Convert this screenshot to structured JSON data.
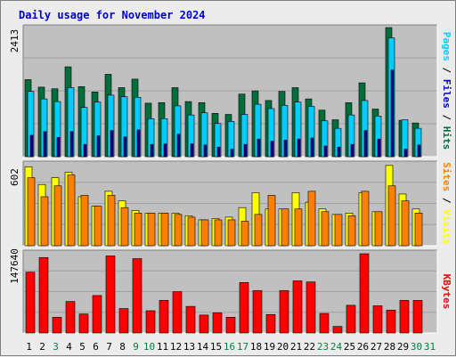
{
  "chart_data": {
    "type": "bar",
    "title": "Daily usage for November 2024",
    "days": [
      "1",
      "2",
      "3",
      "4",
      "5",
      "6",
      "7",
      "8",
      "9",
      "10",
      "11",
      "12",
      "13",
      "14",
      "15",
      "16",
      "17",
      "18",
      "19",
      "20",
      "21",
      "22",
      "23",
      "24",
      "25",
      "26",
      "27",
      "28",
      "29",
      "30",
      "31"
    ],
    "weekend_days": [
      "3",
      "9",
      "10",
      "16",
      "17",
      "23",
      "24",
      "30",
      "31"
    ],
    "colors": {
      "hits": "#006e3a",
      "files": "#00ccff",
      "pages": "#000099",
      "visits": "#ffff00",
      "sites": "#ff8000",
      "kbytes": "#ff0000",
      "weekday_label": "#000000",
      "weekend_label": "#008040",
      "panel": "#c0c0c0",
      "title": "#0000cc"
    },
    "panels": [
      {
        "ymax_label": "2413",
        "ymax": 2413,
        "right_labels": [
          {
            "text": "Pages",
            "color": "#00ccff"
          },
          {
            "text": " / ",
            "color": "#000000"
          },
          {
            "text": "Files",
            "color": "#0000cc"
          },
          {
            "text": " / ",
            "color": "#000000"
          },
          {
            "text": "Hits",
            "color": "#006e3a"
          }
        ],
        "series": [
          {
            "name": "Hits",
            "color": "#006e3a",
            "values": [
              1440,
              1300,
              1270,
              1680,
              1310,
              1210,
              1540,
              1290,
              1450,
              1000,
              1010,
              1290,
              1030,
              1010,
              810,
              790,
              1170,
              1230,
              1050,
              1220,
              1290,
              1080,
              870,
              690,
              1010,
              1380,
              890,
              2413,
              680,
              630,
              null
            ]
          },
          {
            "name": "Files",
            "color": "#00ccff",
            "values": [
              1220,
              1080,
              1030,
              1290,
              920,
              1020,
              1150,
              1120,
              1110,
              710,
              710,
              950,
              780,
              820,
              620,
              660,
              790,
              980,
              900,
              960,
              1020,
              940,
              670,
              530,
              780,
              1050,
              760,
              2220,
              690,
              530,
              null
            ]
          },
          {
            "name": "Pages",
            "color": "#000099",
            "values": [
              400,
              470,
              360,
              470,
              230,
              390,
              490,
              370,
              500,
              230,
              240,
              420,
              240,
              220,
              180,
              140,
              230,
              330,
              290,
              310,
              330,
              350,
              200,
              180,
              230,
              490,
              330,
              1620,
              140,
              220,
              null
            ]
          }
        ]
      },
      {
        "ymax_label": "602",
        "ymax": 602,
        "right_labels": [
          {
            "text": "Sites",
            "color": "#ff8000"
          },
          {
            "text": " / ",
            "color": "#000000"
          },
          {
            "text": "Visits",
            "color": "#ffff00"
          }
        ],
        "series": [
          {
            "name": "Visits",
            "color": "#ffff00",
            "values": [
              580,
              450,
              500,
              540,
              360,
              290,
              400,
              330,
              260,
              240,
              240,
              240,
              220,
              190,
              200,
              210,
              280,
              390,
              270,
              270,
              390,
              320,
              270,
              230,
              240,
              390,
              250,
              590,
              380,
              270,
              null
            ]
          },
          {
            "name": "Sites",
            "color": "#ff8000",
            "values": [
              500,
              360,
              440,
              520,
              370,
              290,
              370,
              280,
              240,
              240,
              240,
              230,
              210,
              190,
              190,
              190,
              180,
              230,
              370,
              270,
              270,
              400,
              250,
              230,
              220,
              400,
              250,
              440,
              330,
              240,
              null
            ]
          }
        ]
      },
      {
        "ymax_label": "147640",
        "ymax": 147640,
        "right_labels": [
          {
            "text": "KBytes",
            "color": "#ff0000"
          }
        ],
        "series": [
          {
            "name": "KBytes",
            "color": "#ff0000",
            "values": [
              112000,
              139000,
              29000,
              58000,
              35000,
              69000,
              142000,
              45000,
              137000,
              41000,
              60000,
              76000,
              49000,
              33000,
              37000,
              29000,
              93000,
              78000,
              34000,
              78000,
              96000,
              94000,
              36000,
              12000,
              51000,
              146000,
              50000,
              42000,
              60000,
              60000,
              null
            ]
          }
        ]
      }
    ]
  }
}
